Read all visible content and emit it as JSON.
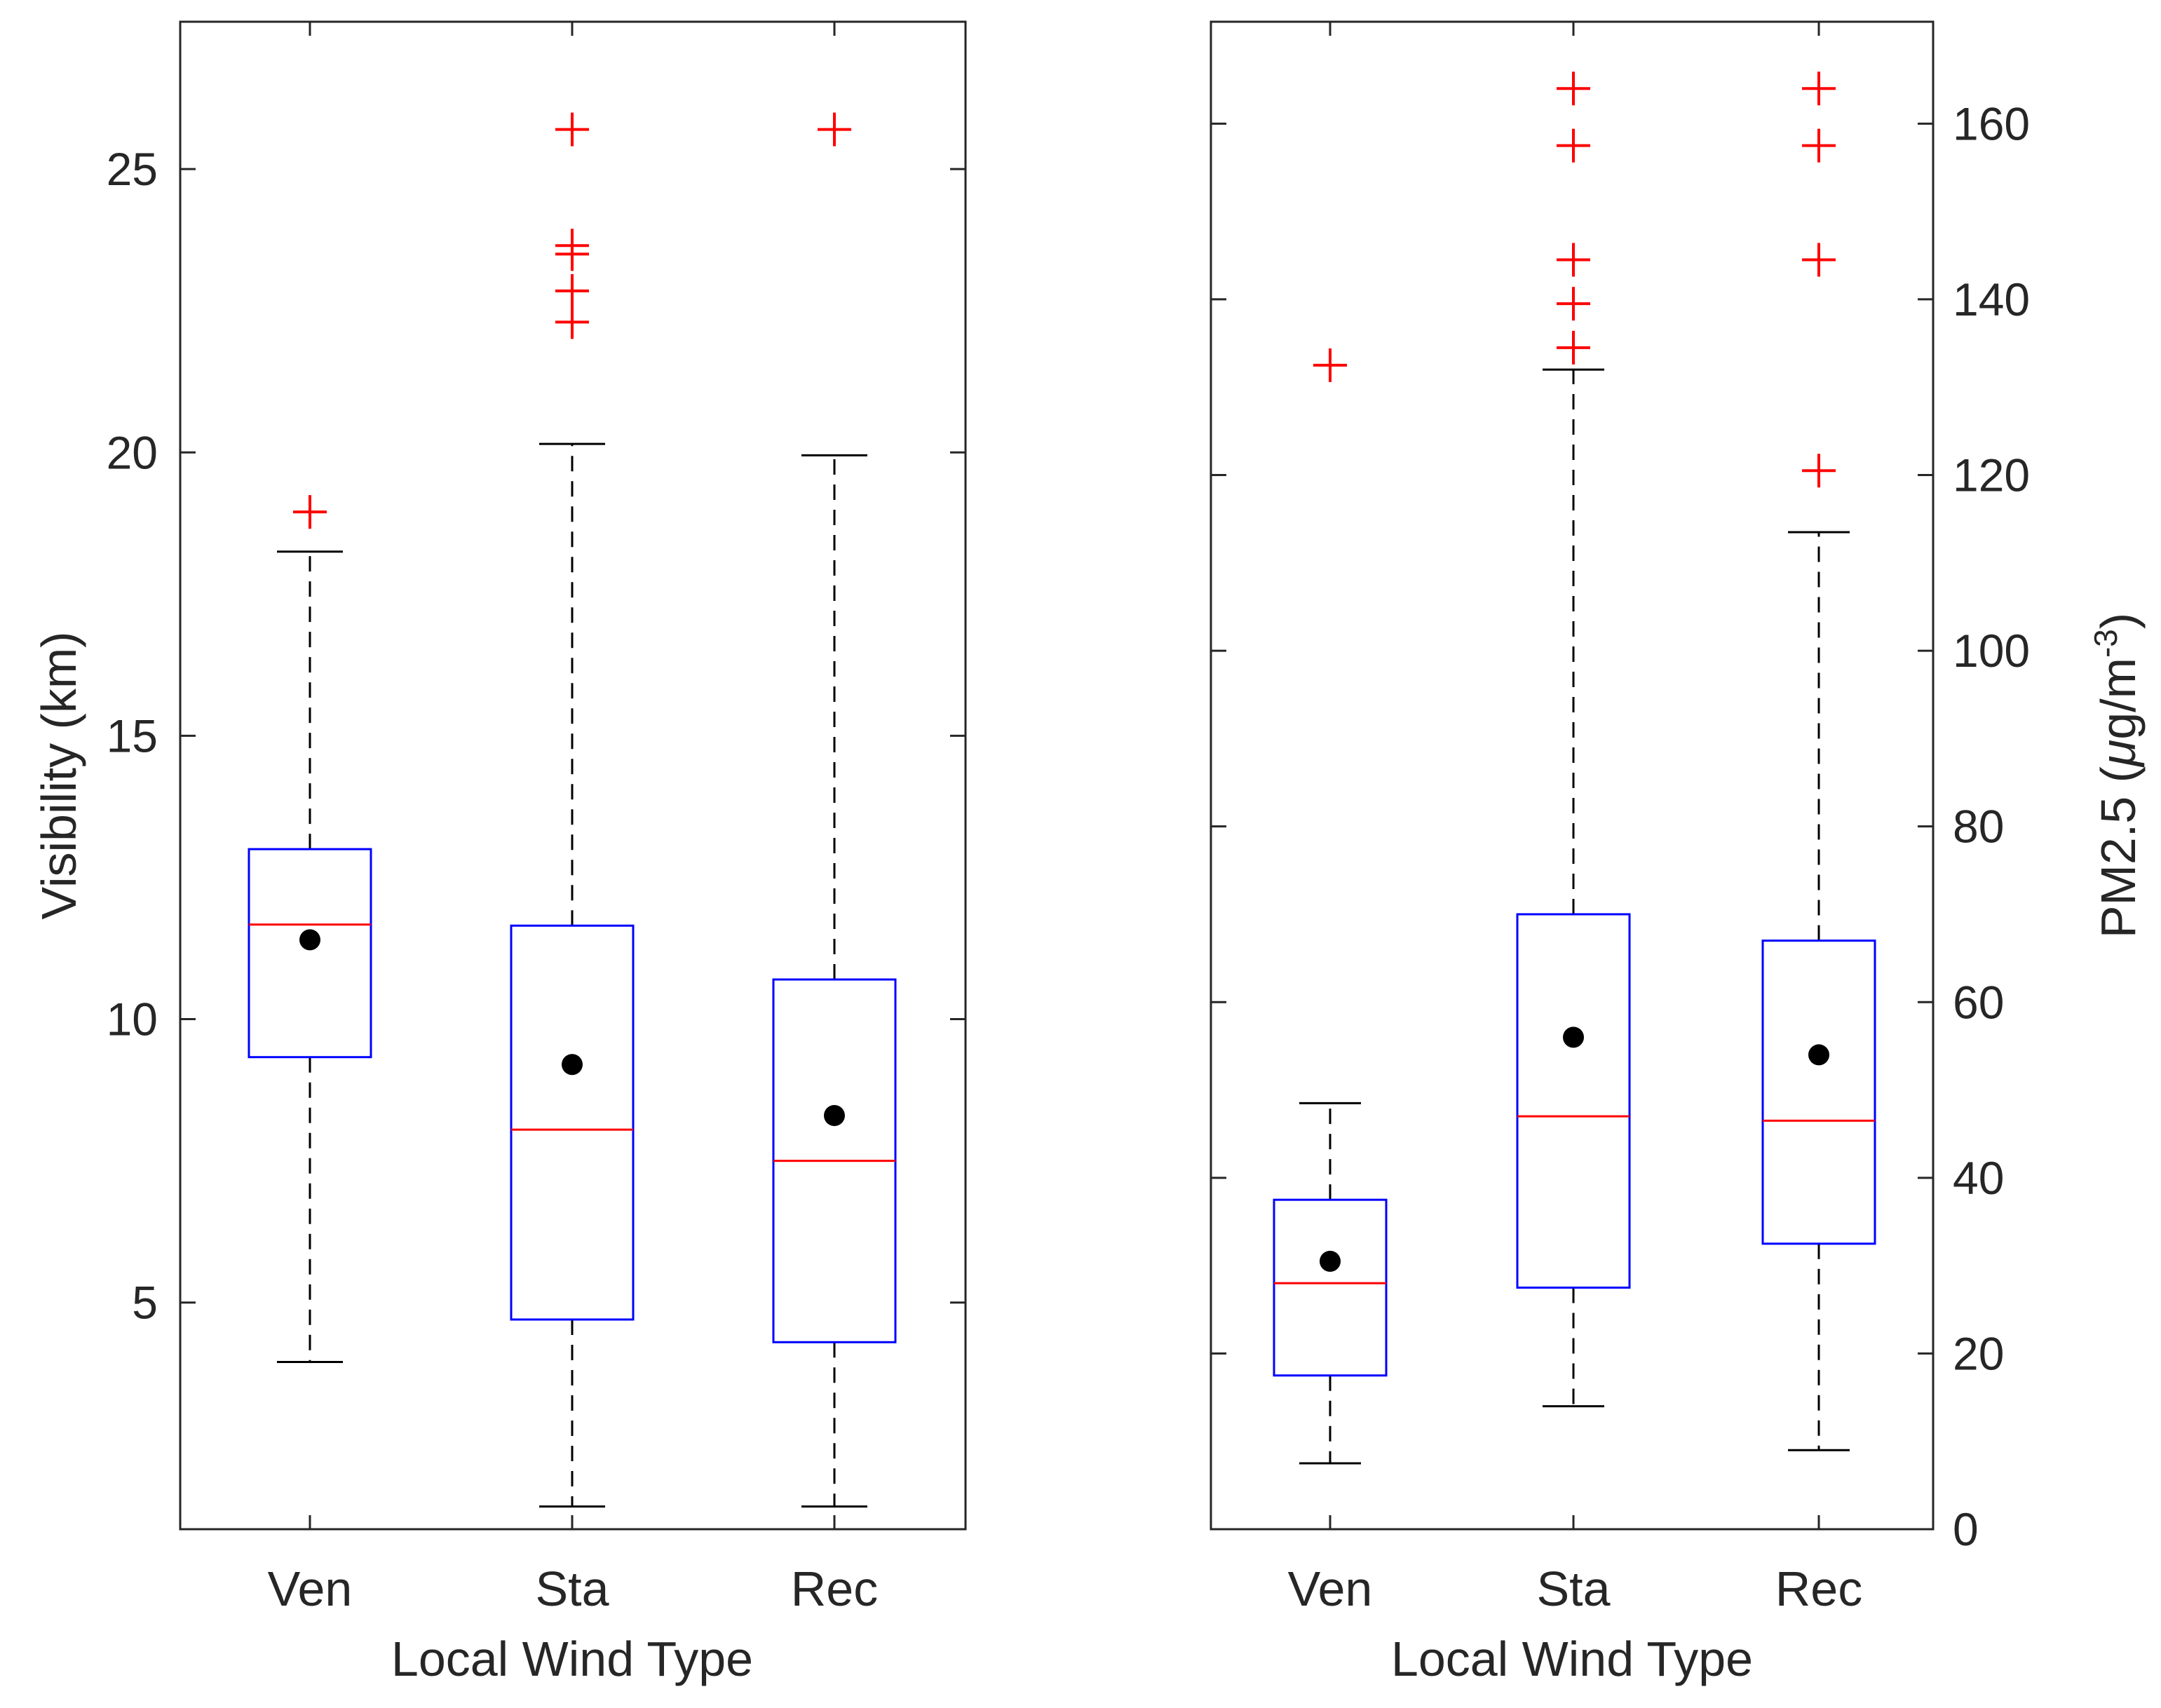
{
  "chart_data": [
    {
      "type": "box",
      "xlabel": "Local Wind Type",
      "ylabel": "Visibility (km)",
      "categories": [
        "Ven",
        "Sta",
        "Rec"
      ],
      "ylim": [
        1.0,
        27.6
      ],
      "yticks": [
        5,
        10,
        15,
        20,
        25
      ],
      "series": [
        {
          "name": "Ven",
          "q1": 9.33,
          "median": 11.67,
          "q3": 13.0,
          "whisker_low": 3.95,
          "whisker_high": 18.25,
          "mean": 11.4,
          "outliers": [
            18.95
          ]
        },
        {
          "name": "Sta",
          "q1": 4.7,
          "median": 8.05,
          "q3": 11.65,
          "whisker_low": 1.4,
          "whisker_high": 20.15,
          "mean": 9.2,
          "outliers": [
            25.7,
            23.65,
            23.5,
            22.85,
            22.3
          ]
        },
        {
          "name": "Rec",
          "q1": 4.3,
          "median": 7.5,
          "q3": 10.7,
          "whisker_low": 1.4,
          "whisker_high": 19.95,
          "mean": 8.3,
          "outliers": [
            25.7
          ]
        }
      ]
    },
    {
      "type": "box",
      "xlabel": "Local Wind Type",
      "ylabel": "PM2.5 (μg/m-3)",
      "ylabel_parts": {
        "prefix": "PM2.5 (",
        "mu": "μ",
        "unit": "g/m",
        "exponent": "-3",
        "suffix": ")"
      },
      "categories": [
        "Ven",
        "Sta",
        "Rec"
      ],
      "ylim": [
        0,
        171.6
      ],
      "yticks": [
        0,
        20,
        40,
        60,
        80,
        100,
        120,
        140,
        160
      ],
      "series": [
        {
          "name": "Ven",
          "q1": 17.5,
          "median": 28.0,
          "q3": 37.5,
          "whisker_low": 7.5,
          "whisker_high": 48.5,
          "mean": 30.5,
          "outliers": [
            132.5
          ]
        },
        {
          "name": "Sta",
          "q1": 27.5,
          "median": 47.0,
          "q3": 70.0,
          "whisker_low": 14.0,
          "whisker_high": 132.0,
          "mean": 56.0,
          "outliers": [
            164.0,
            157.5,
            144.5,
            139.5,
            134.5
          ]
        },
        {
          "name": "Rec",
          "q1": 32.5,
          "median": 46.5,
          "q3": 67.0,
          "whisker_low": 9.0,
          "whisker_high": 113.5,
          "mean": 54.0,
          "outliers": [
            164.0,
            157.5,
            144.5,
            120.5
          ]
        }
      ]
    }
  ],
  "colors": {
    "box": "#0000ff",
    "median": "#ff0000",
    "outlier": "#ff0000",
    "mean": "#000000",
    "whisker": "#000000",
    "axis": "#262626"
  }
}
